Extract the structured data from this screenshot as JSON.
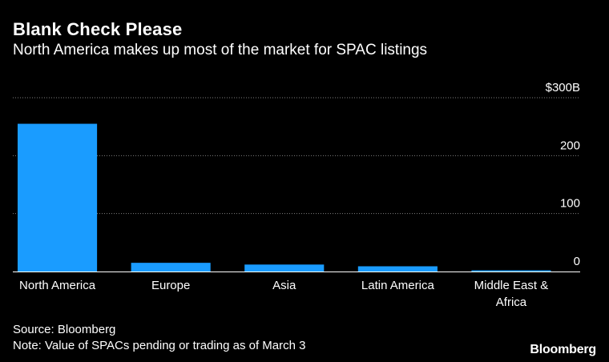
{
  "chart_data": {
    "type": "bar",
    "title": "Blank Check Please",
    "subtitle": "North America makes up most of the market for SPAC listings",
    "categories": [
      "North America",
      "Europe",
      "Asia",
      "Latin America",
      "Middle East & Africa"
    ],
    "category_lines": [
      [
        "North America"
      ],
      [
        "Europe"
      ],
      [
        "Asia"
      ],
      [
        "Latin America"
      ],
      [
        "Middle East &",
        "Africa"
      ]
    ],
    "values": [
      255,
      15,
      12,
      9,
      2
    ],
    "ylim": [
      0,
      300
    ],
    "yticks": [
      0,
      100,
      200,
      300
    ],
    "ytick_labels": [
      "0",
      "100",
      "200",
      "$300B"
    ],
    "grid": true,
    "bar_color": "#1a9cff",
    "gridline_color": "#808080"
  },
  "footer": {
    "source": "Source: Bloomberg",
    "note": "Note: Value of SPACs pending or trading as of March 3"
  },
  "brand": {
    "logo_text": "Bloomberg"
  }
}
